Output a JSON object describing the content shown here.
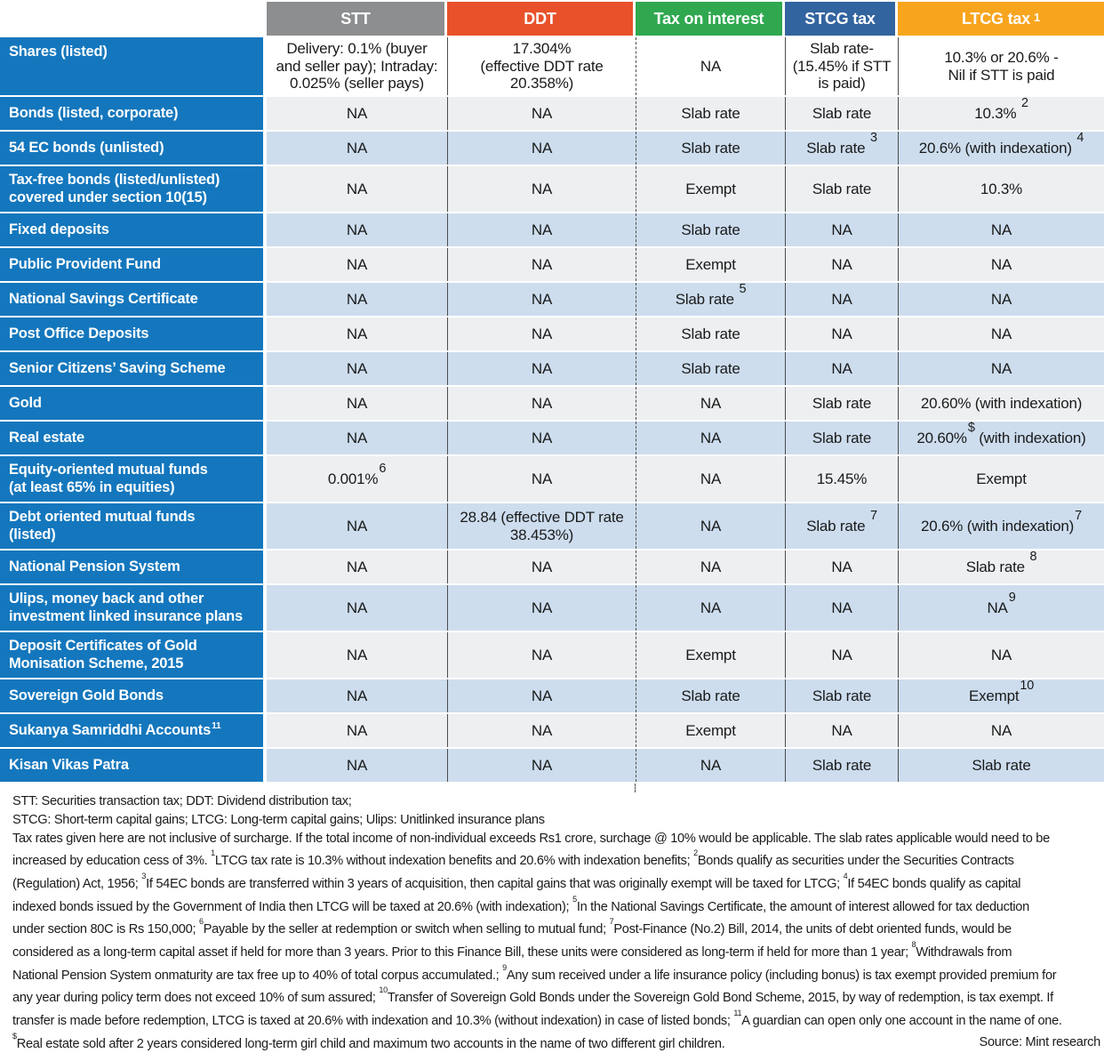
{
  "chart_data": {
    "type": "table",
    "columns": [
      {
        "label": "STT",
        "color": "#8d8e90"
      },
      {
        "label": "DDT",
        "color": "#e8512a"
      },
      {
        "label": "Tax on interest",
        "color": "#2fa850"
      },
      {
        "label": "STCG tax",
        "color": "#32649f"
      },
      {
        "label": "LTCG tax",
        "sup": "1",
        "color": "#f8a51e"
      }
    ],
    "rows": [
      {
        "label": "Shares (listed)",
        "shade": "white",
        "cells": [
          "Delivery: 0.1% (buyer\nand seller pay); Intraday:\n0.025% (seller pays)",
          "17.304%\n(effective DDT rate\n20.358%)",
          "NA",
          "Slab rate-\n(15.45% if STT\nis paid)",
          "10.3% or 20.6% -\nNil if STT is paid"
        ]
      },
      {
        "label": "Bonds (listed, corporate)",
        "shade": "light",
        "cells": [
          "NA",
          "NA",
          "Slab rate",
          "Slab rate",
          {
            "pre": "10.3% ",
            "sup": "2"
          }
        ]
      },
      {
        "label": "54 EC bonds (unlisted)",
        "shade": "blue",
        "cells": [
          "NA",
          "NA",
          "Slab rate",
          {
            "pre": "Slab rate ",
            "sup": "3"
          },
          {
            "pre": "20.6% (with indexation) ",
            "sup": "4"
          }
        ]
      },
      {
        "label": "Tax-free bonds (listed/unlisted)\ncovered under section 10(15)",
        "shade": "light",
        "cells": [
          "NA",
          "NA",
          "Exempt",
          "Slab rate",
          "10.3%"
        ]
      },
      {
        "label": "Fixed deposits",
        "shade": "blue",
        "cells": [
          "NA",
          "NA",
          "Slab rate",
          "NA",
          "NA"
        ]
      },
      {
        "label": "Public Provident Fund",
        "shade": "light",
        "cells": [
          "NA",
          "NA",
          "Exempt",
          "NA",
          "NA"
        ]
      },
      {
        "label": "National Savings Certificate",
        "shade": "blue",
        "cells": [
          "NA",
          "NA",
          {
            "pre": "Slab rate ",
            "sup": "5"
          },
          "NA",
          "NA"
        ]
      },
      {
        "label": "Post Office Deposits",
        "shade": "light",
        "cells": [
          "NA",
          "NA",
          "Slab rate",
          "NA",
          "NA"
        ]
      },
      {
        "label": "Senior Citizens’ Saving Scheme",
        "shade": "blue",
        "cells": [
          "NA",
          "NA",
          "Slab rate",
          "NA",
          "NA"
        ]
      },
      {
        "label": "Gold",
        "shade": "light",
        "cells": [
          "NA",
          "NA",
          "NA",
          "Slab rate",
          "20.60% (with indexation)"
        ]
      },
      {
        "label": "Real estate",
        "shade": "blue",
        "cells": [
          "NA",
          "NA",
          "NA",
          "Slab rate",
          {
            "pre": "20.60%",
            "sup": "$",
            "post": " (with indexation)"
          }
        ]
      },
      {
        "label": "Equity-oriented mutual funds\n(at least 65% in equities)",
        "shade": "light",
        "cells": [
          {
            "pre": "0.001%",
            "sup": "6"
          },
          "NA",
          "NA",
          "15.45%",
          "Exempt"
        ]
      },
      {
        "label": "Debt oriented mutual funds\n(listed)",
        "shade": "blue",
        "cells": [
          "NA",
          "28.84 (effective DDT rate\n38.453%)",
          "NA",
          {
            "pre": "Slab rate ",
            "sup": "7"
          },
          {
            "pre": "20.6% (with indexation)",
            "sup": "7"
          }
        ]
      },
      {
        "label": "National Pension System",
        "shade": "light",
        "cells": [
          "NA",
          "NA",
          "NA",
          "NA",
          {
            "pre": "Slab rate ",
            "sup": "8"
          }
        ]
      },
      {
        "label": "Ulips, money back and other\ninvestment linked insurance plans",
        "shade": "blue",
        "cells": [
          "NA",
          "NA",
          "NA",
          "NA",
          {
            "pre": "NA",
            "sup": "9"
          }
        ]
      },
      {
        "label": "Deposit Certificates of Gold\nMonisation Scheme, 2015",
        "shade": "light",
        "cells": [
          "NA",
          "NA",
          "Exempt",
          "NA",
          "NA"
        ]
      },
      {
        "label": "Sovereign Gold Bonds",
        "shade": "blue",
        "cells": [
          "NA",
          "NA",
          "Slab rate",
          "Slab rate",
          {
            "pre": "Exempt",
            "sup": "10"
          }
        ]
      },
      {
        "label": "Sukanya Samriddhi Accounts",
        "label_sup": "11",
        "shade": "light",
        "cells": [
          "NA",
          "NA",
          "Exempt",
          "NA",
          "NA"
        ]
      },
      {
        "label": "Kisan Vikas Patra",
        "shade": "blue",
        "cells": [
          "NA",
          "NA",
          "NA",
          "Slab rate",
          "Slab rate"
        ]
      }
    ]
  },
  "footnotes": {
    "lines": [
      [
        {
          "t": "STT: Securities transaction tax; DDT: Dividend distribution tax;"
        }
      ],
      [
        {
          "t": "STCG: Short-term capital gains; LTCG: Long-term capital gains; Ulips: Unitlinked insurance plans"
        }
      ],
      [
        {
          "t": "Tax rates given here are not inclusive of surcharge. If the total income of non-individual exceeds Rs1 crore, surchage @ 10% would be applicable. The slab rates applicable would need to be"
        }
      ],
      [
        {
          "t": "increased by education cess of 3%. "
        },
        {
          "s": "1"
        },
        {
          "t": "LTCG tax rate is 10.3% without indexation benefits and 20.6% with indexation benefits; "
        },
        {
          "s": "2"
        },
        {
          "t": "Bonds qualify as securities under the Securities Contracts"
        }
      ],
      [
        {
          "t": "(Regulation) Act, 1956; "
        },
        {
          "s": "3"
        },
        {
          "t": "If 54EC bonds are transferred within 3 years of acquisition, then capital gains that was originally exempt will be taxed for LTCG; "
        },
        {
          "s": "4"
        },
        {
          "t": "If 54EC bonds qualify as capital"
        }
      ],
      [
        {
          "t": "indexed bonds issued by the Government of India then LTCG will be taxed at 20.6% (with indexation); "
        },
        {
          "s": "5"
        },
        {
          "t": "In the National Savings Certificate, the amount of interest allowed for tax deduction"
        }
      ],
      [
        {
          "t": "under section 80C is Rs 150,000; "
        },
        {
          "s": "6"
        },
        {
          "t": "Payable by the seller at redemption or switch when selling to mutual fund; "
        },
        {
          "s": "7"
        },
        {
          "t": "Post-Finance (No.2) Bill, 2014, the units of debt oriented funds, would be"
        }
      ],
      [
        {
          "t": "considered as a long-term capital asset if held for more than 3 years. Prior to this Finance Bill, these units were considered as long-term if held for more than 1 year; "
        },
        {
          "s": "8"
        },
        {
          "t": "Withdrawals from"
        }
      ],
      [
        {
          "t": "National Pension System onmaturity are tax free up to 40% of total corpus accumulated.; "
        },
        {
          "s": "9"
        },
        {
          "t": "Any sum received under a life insurance policy (including bonus) is tax exempt provided premium for"
        }
      ],
      [
        {
          "t": "any year during policy term does not exceed 10% of sum assured; "
        },
        {
          "s": "10"
        },
        {
          "t": "Transfer of Sovereign Gold Bonds under the Sovereign Gold Bond Scheme, 2015, by way of redemption, is tax exempt. If"
        }
      ],
      [
        {
          "t": "transfer is made before redemption, LTCG is taxed at 20.6% with indexation and 10.3% (without indexation) in case of listed bonds; "
        },
        {
          "s": "11"
        },
        {
          "t": "A guardian can open only one account in the name of one."
        }
      ],
      [
        {
          "s": "$"
        },
        {
          "t": "Real estate sold after 2 years considered long-term girl child and maximum two accounts in the name of two different girl children."
        }
      ]
    ],
    "source": "Source: Mint research"
  },
  "colors": {
    "row_header_blue": "#1477bd",
    "stripe_light": "#edeff1",
    "stripe_blue": "#cdddee",
    "divider": "#4c4c4c"
  }
}
